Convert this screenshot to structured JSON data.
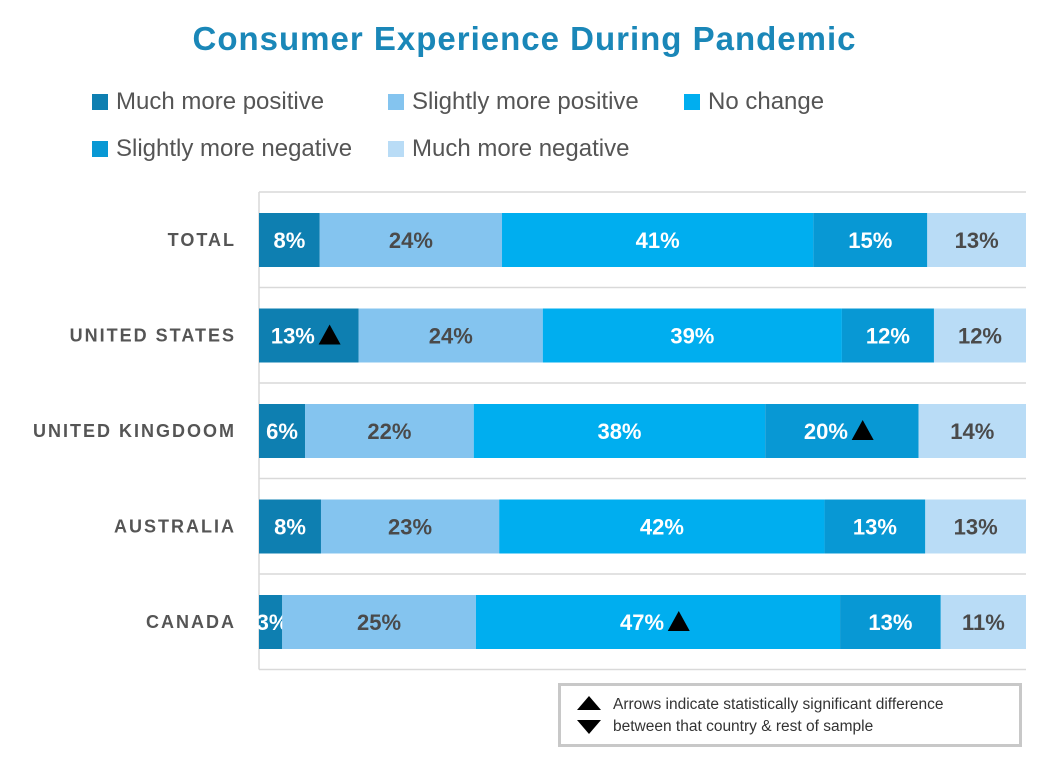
{
  "chart_data": {
    "type": "bar",
    "orientation": "horizontal",
    "stacked": true,
    "title": "Consumer Experience During Pandemic",
    "categories": [
      "TOTAL",
      "UNITED STATES",
      "UNITED KINGDOOM",
      "AUSTRALIA",
      "CANADA"
    ],
    "series": [
      {
        "name": "Much more positive",
        "color": "#0e7fb1",
        "label_color": "#ffffff",
        "values": [
          8,
          13,
          6,
          8,
          3
        ]
      },
      {
        "name": "Slightly more positive",
        "color": "#84c4ef",
        "label_color": "#4a4a4a",
        "values": [
          24,
          24,
          22,
          23,
          25
        ]
      },
      {
        "name": "No change",
        "color": "#00aeef",
        "label_color": "#ffffff",
        "values": [
          41,
          39,
          38,
          42,
          47
        ]
      },
      {
        "name": "Slightly more negative",
        "color": "#0898d4",
        "label_color": "#ffffff",
        "values": [
          15,
          12,
          20,
          13,
          13
        ]
      },
      {
        "name": "Much more negative",
        "color": "#b9dcf6",
        "label_color": "#4a4a4a",
        "values": [
          13,
          12,
          14,
          13,
          11
        ]
      }
    ],
    "value_suffix": "%",
    "significance_arrows": [
      {
        "category": "UNITED STATES",
        "series": "Much more positive",
        "direction": "up"
      },
      {
        "category": "UNITED KINGDOOM",
        "series": "Slightly more negative",
        "direction": "up"
      },
      {
        "category": "CANADA",
        "series": "No change",
        "direction": "up"
      }
    ],
    "xlim": [
      0,
      100
    ],
    "grid": true,
    "legend_position": "top"
  },
  "note": {
    "line1": "Arrows indicate statistically significant difference",
    "line2": "between that country & rest of sample"
  }
}
